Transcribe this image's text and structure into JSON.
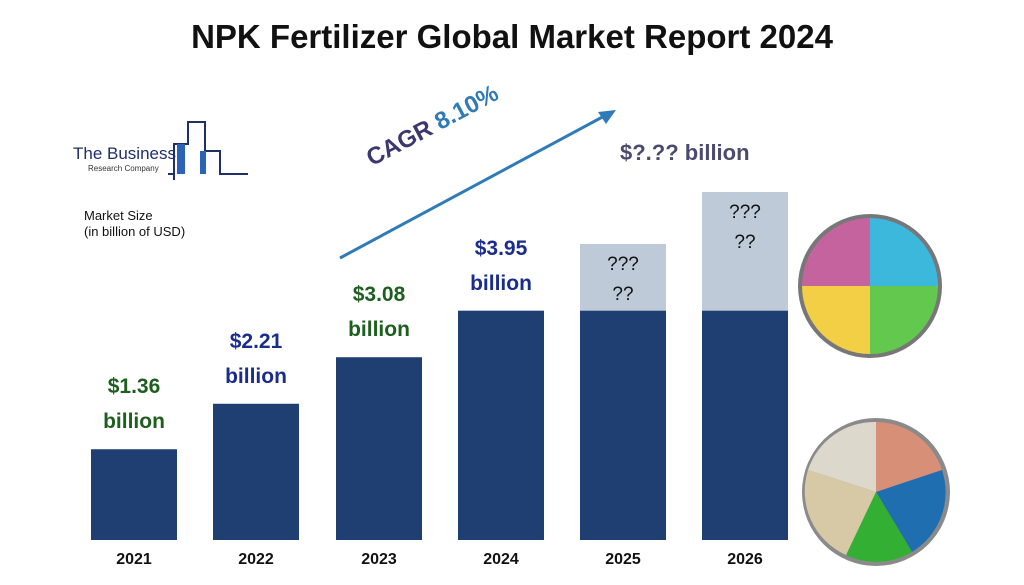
{
  "title": "NPK Fertilizer Global Market Report 2024",
  "logo": {
    "line1": "The Business",
    "line2": "Research Company"
  },
  "market_size_label": [
    "Market Size",
    "(in billion of USD)"
  ],
  "cagr": {
    "label": "CAGR",
    "value": "8.10%"
  },
  "forecast_label": "$?.?? billion",
  "colors": {
    "bar": "#1f3f73",
    "forecast_bar": "#bfcad8",
    "green_label": "#1e5e1e",
    "blue_label": "#1a2d8c",
    "arrow": "#2f7bb8"
  },
  "chart_data": {
    "type": "bar",
    "categories": [
      "2021",
      "2022",
      "2023",
      "2024",
      "2025",
      "2026"
    ],
    "values": [
      1.36,
      2.21,
      3.08,
      3.95,
      null,
      null
    ],
    "data_labels": [
      [
        "$1.36",
        "billion"
      ],
      [
        "$2.21",
        "billion"
      ],
      [
        "$3.08",
        "billion"
      ],
      [
        "$3.95",
        "billion"
      ],
      [
        "???",
        "??"
      ],
      [
        "???",
        "??"
      ]
    ],
    "label_colors": [
      "#1e5e1e",
      "#1a2d8c",
      "#1e5e1e",
      "#1a2d8c",
      "#111111",
      "#111111"
    ],
    "xlabel": "",
    "ylabel": "",
    "grid": false
  }
}
